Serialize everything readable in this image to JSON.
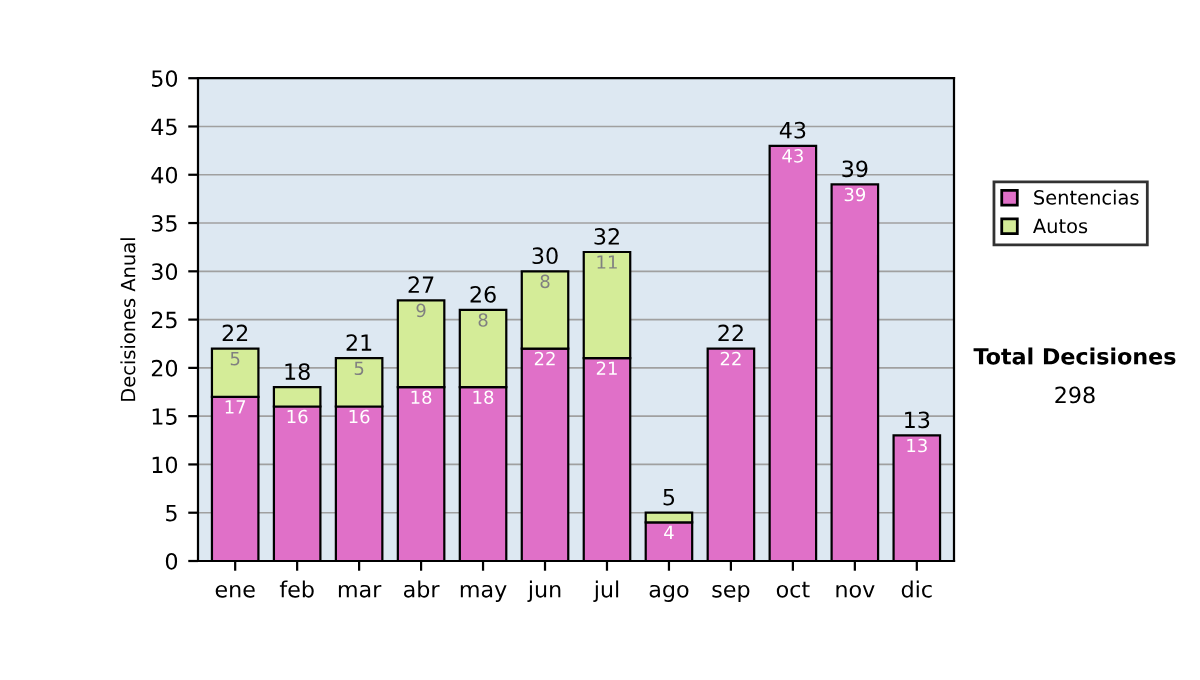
{
  "chart_data": {
    "type": "bar",
    "stacked": true,
    "ylabel": "Decisiones Anual",
    "categories": [
      "ene",
      "feb",
      "mar",
      "abr",
      "may",
      "jun",
      "jul",
      "ago",
      "sep",
      "oct",
      "nov",
      "dic"
    ],
    "series": [
      {
        "name": "Sentencias",
        "color": "#e070c8",
        "values": [
          17,
          16,
          16,
          18,
          18,
          22,
          21,
          4,
          22,
          43,
          39,
          13
        ],
        "value_labels": [
          "17",
          "16",
          "16",
          "18",
          "18",
          "22",
          "21",
          "4",
          "22",
          "43",
          "39",
          "13"
        ]
      },
      {
        "name": "Autos",
        "color": "#d4ec98",
        "values": [
          5,
          2,
          5,
          9,
          8,
          8,
          11,
          1,
          null,
          null,
          null,
          null
        ],
        "value_labels": [
          "5",
          null,
          "5",
          "9",
          "8",
          "8",
          "11",
          null,
          null,
          null,
          null,
          null
        ]
      }
    ],
    "totals": [
      "22",
      "18",
      "21",
      "27",
      "26",
      "30",
      "32",
      "5",
      "22",
      "43",
      "39",
      "13"
    ],
    "ylim": [
      0,
      50
    ],
    "yticks": [
      0,
      5,
      10,
      15,
      20,
      25,
      30,
      35,
      40,
      45,
      50
    ],
    "grid": "y",
    "legend": "right",
    "annotations": [
      "Total Decisiones",
      "298"
    ]
  }
}
